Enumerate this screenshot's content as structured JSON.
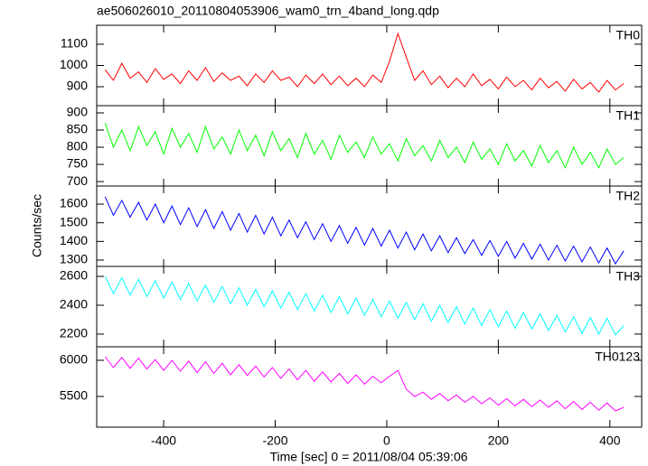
{
  "chart_data": {
    "type": "line",
    "title": "ae506026010_20110804053906_wam0_trn_4band_long.qdp",
    "x_label": "Time [sec] 0 = 2011/08/04 05:39:06",
    "y_label": "Counts/sec",
    "xlim": [
      -520,
      457
    ],
    "xticks": [
      -400,
      -200,
      0,
      200,
      400
    ],
    "x": [
      -505,
      -490,
      -475,
      -460,
      -445,
      -430,
      -415,
      -400,
      -385,
      -370,
      -355,
      -340,
      -325,
      -310,
      -295,
      -280,
      -265,
      -250,
      -235,
      -220,
      -205,
      -190,
      -175,
      -160,
      -145,
      -130,
      -115,
      -100,
      -85,
      -70,
      -55,
      -40,
      -25,
      -10,
      5,
      20,
      35,
      50,
      65,
      80,
      95,
      110,
      125,
      140,
      155,
      170,
      185,
      200,
      215,
      230,
      245,
      260,
      275,
      290,
      305,
      320,
      335,
      350,
      365,
      380,
      395,
      410,
      425
    ],
    "series": [
      {
        "name": "TH0",
        "color": "#ff0000",
        "ylim": [
          811,
          1189
        ],
        "yticks": [
          900,
          1000,
          1100
        ],
        "values": [
          980,
          930,
          1010,
          940,
          970,
          920,
          985,
          935,
          960,
          915,
          975,
          930,
          990,
          925,
          965,
          930,
          950,
          905,
          960,
          920,
          975,
          930,
          945,
          900,
          955,
          915,
          960,
          910,
          950,
          905,
          940,
          900,
          955,
          920,
          1020,
          1150,
          1040,
          930,
          975,
          910,
          950,
          895,
          940,
          900,
          960,
          905,
          935,
          890,
          945,
          900,
          930,
          885,
          940,
          895,
          925,
          880,
          935,
          890,
          920,
          875,
          930,
          885,
          915
        ]
      },
      {
        "name": "TH1",
        "color": "#00ff00",
        "ylim": [
          687,
          921
        ],
        "yticks": [
          700,
          750,
          800,
          850,
          900
        ],
        "values": [
          870,
          800,
          850,
          790,
          860,
          805,
          845,
          780,
          855,
          800,
          840,
          785,
          860,
          795,
          830,
          780,
          850,
          790,
          835,
          775,
          845,
          790,
          825,
          770,
          840,
          780,
          820,
          765,
          835,
          785,
          815,
          770,
          830,
          780,
          810,
          760,
          825,
          775,
          805,
          760,
          820,
          770,
          800,
          755,
          815,
          765,
          795,
          750,
          810,
          760,
          790,
          745,
          805,
          755,
          790,
          740,
          800,
          750,
          785,
          740,
          795,
          750,
          770
        ]
      },
      {
        "name": "TH2",
        "color": "#0000ff",
        "ylim": [
          1266,
          1697
        ],
        "yticks": [
          1300,
          1400,
          1500,
          1600
        ],
        "values": [
          1640,
          1540,
          1620,
          1530,
          1610,
          1515,
          1600,
          1500,
          1590,
          1490,
          1580,
          1480,
          1570,
          1470,
          1560,
          1460,
          1550,
          1450,
          1540,
          1440,
          1530,
          1430,
          1515,
          1420,
          1505,
          1410,
          1495,
          1400,
          1485,
          1390,
          1475,
          1380,
          1470,
          1375,
          1460,
          1365,
          1450,
          1355,
          1440,
          1350,
          1430,
          1340,
          1420,
          1335,
          1410,
          1325,
          1405,
          1320,
          1400,
          1310,
          1390,
          1305,
          1385,
          1300,
          1380,
          1295,
          1375,
          1290,
          1370,
          1285,
          1365,
          1280,
          1350
        ]
      },
      {
        "name": "TH3",
        "color": "#00ffff",
        "ylim": [
          2112,
          2669
        ],
        "yticks": [
          2200,
          2400,
          2600
        ],
        "values": [
          2600,
          2480,
          2590,
          2470,
          2580,
          2460,
          2570,
          2450,
          2560,
          2440,
          2550,
          2430,
          2540,
          2420,
          2530,
          2410,
          2520,
          2400,
          2510,
          2390,
          2500,
          2380,
          2490,
          2370,
          2480,
          2360,
          2470,
          2350,
          2460,
          2340,
          2450,
          2330,
          2440,
          2320,
          2430,
          2310,
          2420,
          2300,
          2410,
          2290,
          2400,
          2280,
          2390,
          2270,
          2380,
          2260,
          2370,
          2250,
          2360,
          2240,
          2350,
          2235,
          2340,
          2225,
          2330,
          2215,
          2320,
          2205,
          2315,
          2200,
          2310,
          2195,
          2260
        ]
      },
      {
        "name": "TH0123",
        "color": "#ff00ff",
        "ylim": [
          5075,
          6187
        ],
        "yticks": [
          5500,
          6000
        ],
        "values": [
          6050,
          5900,
          6040,
          5890,
          6030,
          5880,
          6010,
          5860,
          6000,
          5850,
          5990,
          5830,
          5980,
          5820,
          5960,
          5800,
          5940,
          5790,
          5920,
          5770,
          5900,
          5750,
          5880,
          5730,
          5860,
          5710,
          5840,
          5700,
          5820,
          5680,
          5800,
          5670,
          5780,
          5690,
          5780,
          5860,
          5600,
          5500,
          5560,
          5460,
          5540,
          5440,
          5520,
          5420,
          5500,
          5400,
          5480,
          5380,
          5470,
          5370,
          5460,
          5360,
          5450,
          5350,
          5440,
          5330,
          5430,
          5320,
          5420,
          5310,
          5410,
          5300,
          5350
        ]
      }
    ]
  }
}
